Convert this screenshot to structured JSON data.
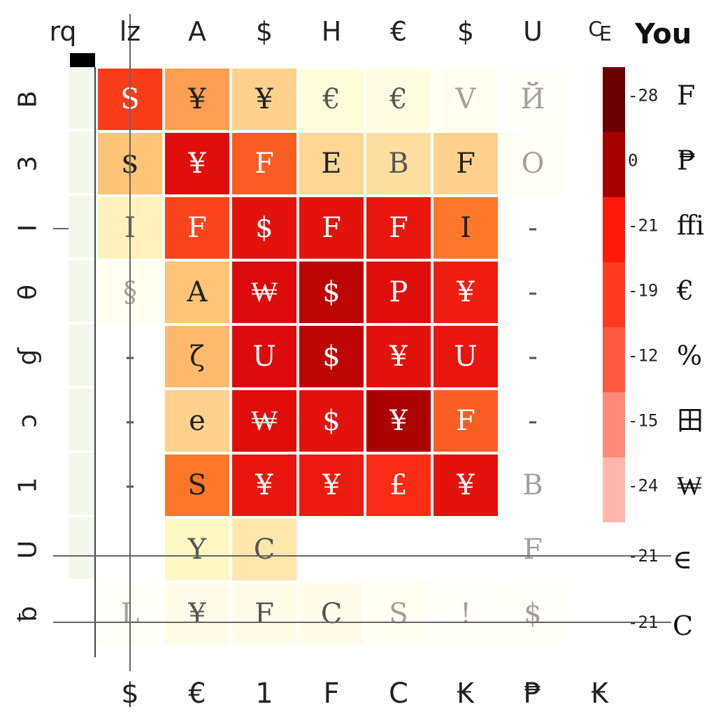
{
  "chart_data": {
    "type": "heatmap",
    "title": "You",
    "corner_label": "rq",
    "top_ticks": [
      "lz",
      "A",
      "$",
      "H",
      "€",
      "$",
      "U",
      "₠"
    ],
    "bottom_ticks": [
      "$",
      "€",
      "1",
      "F",
      "C",
      "₭",
      "₱",
      "₭"
    ],
    "row_labels": [
      "B",
      "3",
      "I",
      "θ",
      "ɠ",
      "ɔ",
      "1",
      "U",
      "ƀ"
    ],
    "cells": [
      [
        {
          "level": 0.7,
          "text": "S"
        },
        {
          "level": 0.45,
          "text": "¥"
        },
        {
          "level": 0.3,
          "text": "¥"
        },
        {
          "level": 0.1,
          "text": "€"
        },
        {
          "level": 0.08,
          "text": "€"
        },
        {
          "level": 0.04,
          "text": "V"
        },
        {
          "level": 0.02,
          "text": "Й"
        }
      ],
      [
        {
          "level": 0.35,
          "text": "$"
        },
        {
          "level": 0.88,
          "text": "¥"
        },
        {
          "level": 0.62,
          "text": "F"
        },
        {
          "level": 0.28,
          "text": "E"
        },
        {
          "level": 0.25,
          "text": "B"
        },
        {
          "level": 0.3,
          "text": "F"
        },
        {
          "level": 0.03,
          "text": "O"
        }
      ],
      [
        {
          "level": 0.18,
          "text": "I"
        },
        {
          "level": 0.68,
          "text": "F"
        },
        {
          "level": 0.86,
          "text": "$"
        },
        {
          "level": 0.86,
          "text": "F"
        },
        {
          "level": 0.84,
          "text": "F"
        },
        {
          "level": 0.55,
          "text": "I"
        },
        {
          "level": 0.0,
          "text": "-"
        }
      ],
      [
        {
          "level": 0.04,
          "text": "§"
        },
        {
          "level": 0.35,
          "text": "A"
        },
        {
          "level": 0.9,
          "text": "₩"
        },
        {
          "level": 0.95,
          "text": "$"
        },
        {
          "level": 0.88,
          "text": "P"
        },
        {
          "level": 0.8,
          "text": "¥"
        },
        {
          "level": 0.0,
          "text": "-"
        }
      ],
      [
        {
          "level": 0.0,
          "text": "-"
        },
        {
          "level": 0.38,
          "text": "ζ"
        },
        {
          "level": 0.9,
          "text": "U"
        },
        {
          "level": 0.95,
          "text": "$"
        },
        {
          "level": 0.86,
          "text": "¥"
        },
        {
          "level": 0.84,
          "text": "U"
        },
        {
          "level": 0.0,
          "text": "-"
        }
      ],
      [
        {
          "level": 0.0,
          "text": "-"
        },
        {
          "level": 0.3,
          "text": "e"
        },
        {
          "level": 0.88,
          "text": "₩"
        },
        {
          "level": 0.86,
          "text": "$"
        },
        {
          "level": 0.98,
          "text": "¥"
        },
        {
          "level": 0.62,
          "text": "F"
        },
        {
          "level": 0.0,
          "text": "-"
        }
      ],
      [
        {
          "level": 0.0,
          "text": "-"
        },
        {
          "level": 0.55,
          "text": "S"
        },
        {
          "level": 0.84,
          "text": "¥"
        },
        {
          "level": 0.82,
          "text": "¥"
        },
        {
          "level": 0.74,
          "text": "£"
        },
        {
          "level": 0.86,
          "text": "¥"
        },
        {
          "level": 0.0,
          "text": "B"
        }
      ],
      [
        {
          "level": 0.0,
          "text": ""
        },
        {
          "level": 0.16,
          "text": "Y"
        },
        {
          "level": 0.22,
          "text": "C"
        },
        {
          "level": 0.0,
          "text": ""
        },
        {
          "level": 0.0,
          "text": ""
        },
        {
          "level": 0.0,
          "text": ""
        },
        {
          "level": 0.0,
          "text": "F"
        }
      ],
      [
        {
          "level": 0.02,
          "text": "L"
        },
        {
          "level": 0.06,
          "text": "¥"
        },
        {
          "level": 0.06,
          "text": "F"
        },
        {
          "level": 0.06,
          "text": "C"
        },
        {
          "level": 0.04,
          "text": "S"
        },
        {
          "level": 0.02,
          "text": "!"
        },
        {
          "level": 0.02,
          "text": "$"
        }
      ]
    ],
    "left_column_levels": [
      0.05,
      0.05,
      0.05,
      0.05,
      0.05,
      0.05,
      0.05,
      0.05,
      0.0
    ],
    "colorbar": {
      "colors": [
        "#6b0000",
        "#a80000",
        "#ff1a0a",
        "#ff3a20",
        "#ff5a40",
        "#ff8a78",
        "#ffb8aa"
      ],
      "numbers": [
        "-28",
        "0",
        "-21",
        "-19",
        "-12",
        "-15",
        "-24"
      ],
      "glyphs": [
        "F",
        "₱",
        "ffi",
        "€",
        "%",
        "田",
        "₩"
      ],
      "extra_numbers": [
        "-21",
        "-21"
      ],
      "extra_glyphs": [
        "∈",
        "C"
      ]
    },
    "grid": true
  }
}
